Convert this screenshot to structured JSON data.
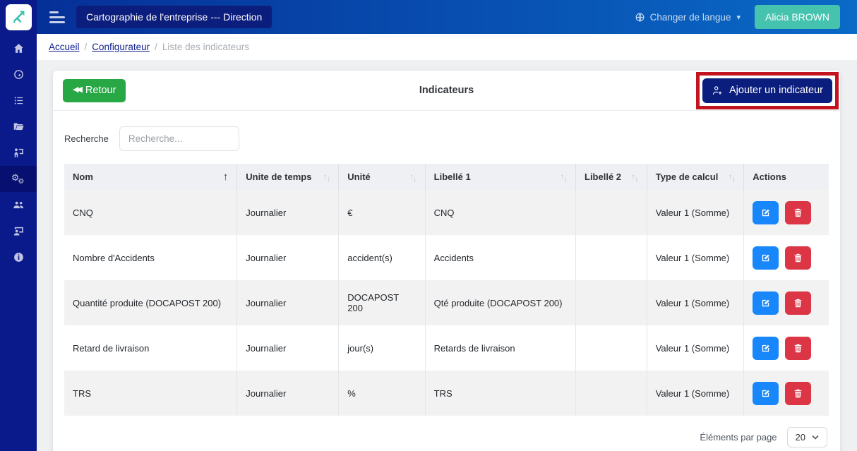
{
  "topbar": {
    "title": "Cartographie de l'entreprise --- Direction",
    "language_label": "Changer de langue",
    "user_name": "Alicia BROWN"
  },
  "breadcrumb": {
    "separator": "/",
    "items": [
      {
        "label": "Accueil",
        "link": true
      },
      {
        "label": "Configurateur",
        "link": true
      },
      {
        "label": "Liste des indicateurs",
        "link": false
      }
    ]
  },
  "sidebar": {
    "icons": [
      "home-icon",
      "dashboard-gauge-icon",
      "list-icon",
      "folder-open-icon",
      "person-presentation-icon",
      "gears-icon",
      "users-group-icon",
      "user-screen-icon",
      "info-icon"
    ],
    "active_index": 5
  },
  "card": {
    "back_label": "Retour",
    "title": "Indicateurs",
    "add_label": "Ajouter un indicateur",
    "search_label": "Recherche",
    "search_placeholder": "Recherche...",
    "table": {
      "columns": [
        {
          "label": "Nom",
          "sort": "asc",
          "width": "22.6%"
        },
        {
          "label": "Unite de temps",
          "sort": "both",
          "width": "13.3%"
        },
        {
          "label": "Unité",
          "sort": "both",
          "width": "11.3%"
        },
        {
          "label": "Libellé 1",
          "sort": "both",
          "width": "19.7%"
        },
        {
          "label": "Libellé 2",
          "sort": "both",
          "width": "9.3%"
        },
        {
          "label": "Type de calcul",
          "sort": "both",
          "width": "12.7%"
        },
        {
          "label": "Actions",
          "sort": "none",
          "width": "11.1%"
        }
      ],
      "rows": [
        {
          "nom": "CNQ",
          "unite_temps": "Journalier",
          "unite": "€",
          "libelle1": "CNQ",
          "libelle2": "",
          "type_calcul": "Valeur 1 (Somme)"
        },
        {
          "nom": "Nombre d'Accidents",
          "unite_temps": "Journalier",
          "unite": "accident(s)",
          "libelle1": "Accidents",
          "libelle2": "",
          "type_calcul": "Valeur 1 (Somme)"
        },
        {
          "nom": "Quantité produite (DOCAPOST 200)",
          "unite_temps": "Journalier",
          "unite": "DOCAPOST 200",
          "libelle1": "Qté produite (DOCAPOST 200)",
          "libelle2": "",
          "type_calcul": "Valeur 1 (Somme)"
        },
        {
          "nom": "Retard de livraison",
          "unite_temps": "Journalier",
          "unite": "jour(s)",
          "libelle1": "Retards de livraison",
          "libelle2": "",
          "type_calcul": "Valeur 1 (Somme)"
        },
        {
          "nom": "TRS",
          "unite_temps": "Journalier",
          "unite": "%",
          "libelle1": "TRS",
          "libelle2": "",
          "type_calcul": "Valeur 1 (Somme)"
        }
      ]
    },
    "pagination": {
      "label": "Éléments par page",
      "page_size": "20"
    }
  },
  "colors": {
    "topbar_gradient_start": "#052d96",
    "topbar_gradient_end": "#0a6ac6",
    "sidebar": "#0a1a8a",
    "sidebar_active": "#071070",
    "navy_button": "#0c1e7d",
    "teal_accent": "#45c3ae",
    "green_button": "#28a745",
    "edit_blue": "#1787fb",
    "delete_red": "#dc3545",
    "annotation_red": "#c2131f"
  }
}
